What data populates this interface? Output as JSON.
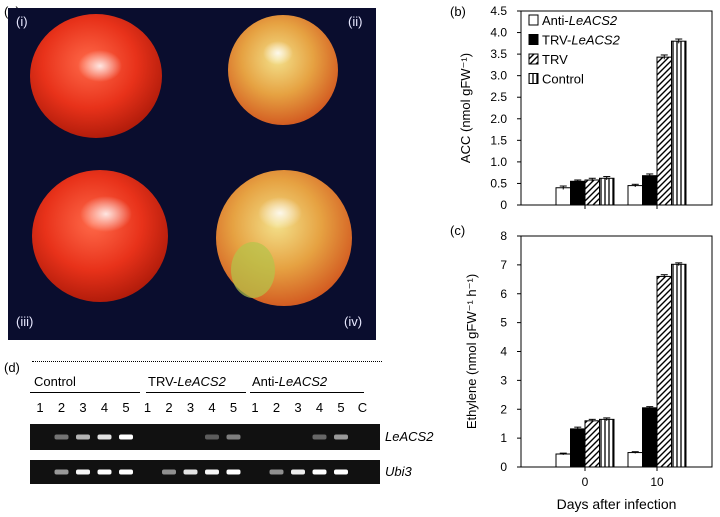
{
  "panel_labels": {
    "a": "(a)",
    "b": "(b)",
    "c": "(c)",
    "d": "(d)"
  },
  "fruit_labels": [
    "(i)",
    "(ii)",
    "(iii)",
    "(iv)"
  ],
  "gel": {
    "groups": [
      {
        "prefix": "Control",
        "italic": ""
      },
      {
        "prefix": "TRV-",
        "italic": "LeACS2"
      },
      {
        "prefix": "Anti-",
        "italic": "LeACS2"
      }
    ],
    "lanes": [
      "1",
      "2",
      "3",
      "4",
      "5",
      "1",
      "2",
      "3",
      "4",
      "5",
      "1",
      "2",
      "3",
      "4",
      "5",
      "C"
    ],
    "genes": [
      "LeACS2",
      "Ubi3"
    ],
    "intensity": {
      "LeACS2": [
        0,
        0.25,
        0.6,
        0.85,
        1.0,
        0,
        0,
        0,
        0.12,
        0.3,
        0,
        0,
        0,
        0.18,
        0.45,
        0
      ],
      "Ubi3": [
        0,
        0.45,
        0.95,
        1.0,
        1.0,
        0,
        0.4,
        0.85,
        0.95,
        1.0,
        0,
        0.4,
        0.9,
        1.0,
        1.0,
        0
      ]
    }
  },
  "colors": {
    "Anti-LeACS2": "#ffffff",
    "TRV-LeACS2": "#000000",
    "TRV": "hatch-diagonal",
    "Control": "hatch-vertical"
  },
  "chart_data": [
    {
      "type": "bar",
      "panel": "(b)",
      "xlabel": "",
      "ylabel": "ACC (nmol gFW⁻¹)",
      "categories": [
        "0",
        "10"
      ],
      "ylim": [
        0,
        4.5
      ],
      "yticks": [
        "0",
        "0.5",
        "1.0",
        "1.5",
        "2.0",
        "2.5",
        "3.0",
        "3.5",
        "4.0",
        "4.5"
      ],
      "legend": {
        "placement": "top-left",
        "entries": [
          {
            "prefix": "Anti-",
            "italic": "LeACS2"
          },
          {
            "prefix": "TRV-",
            "italic": "LeACS2"
          },
          {
            "prefix": "TRV",
            "italic": ""
          },
          {
            "prefix": "Control",
            "italic": ""
          }
        ]
      },
      "series": [
        {
          "name": "Anti-LeACS2",
          "values": [
            0.4,
            0.45
          ],
          "errors": [
            0.04,
            0.03
          ]
        },
        {
          "name": "TRV-LeACS2",
          "values": [
            0.55,
            0.68
          ],
          "errors": [
            0.03,
            0.04
          ]
        },
        {
          "name": "TRV",
          "values": [
            0.58,
            3.43
          ],
          "errors": [
            0.04,
            0.05
          ]
        },
        {
          "name": "Control",
          "values": [
            0.62,
            3.8
          ],
          "errors": [
            0.04,
            0.05
          ]
        }
      ]
    },
    {
      "type": "bar",
      "panel": "(c)",
      "xlabel": "Days after infection",
      "ylabel": "Ethylene (nmol gFW⁻¹ h⁻¹)",
      "categories": [
        "0",
        "10"
      ],
      "ylim": [
        0,
        8
      ],
      "yticks": [
        "0",
        "1",
        "2",
        "3",
        "4",
        "5",
        "6",
        "7",
        "8"
      ],
      "series": [
        {
          "name": "Anti-LeACS2",
          "values": [
            0.45,
            0.5
          ],
          "errors": [
            0.03,
            0.03
          ]
        },
        {
          "name": "TRV-LeACS2",
          "values": [
            1.32,
            2.05
          ],
          "errors": [
            0.06,
            0.04
          ]
        },
        {
          "name": "TRV",
          "values": [
            1.6,
            6.6
          ],
          "errors": [
            0.05,
            0.06
          ]
        },
        {
          "name": "Control",
          "values": [
            1.65,
            7.02
          ],
          "errors": [
            0.05,
            0.05
          ]
        }
      ]
    }
  ]
}
